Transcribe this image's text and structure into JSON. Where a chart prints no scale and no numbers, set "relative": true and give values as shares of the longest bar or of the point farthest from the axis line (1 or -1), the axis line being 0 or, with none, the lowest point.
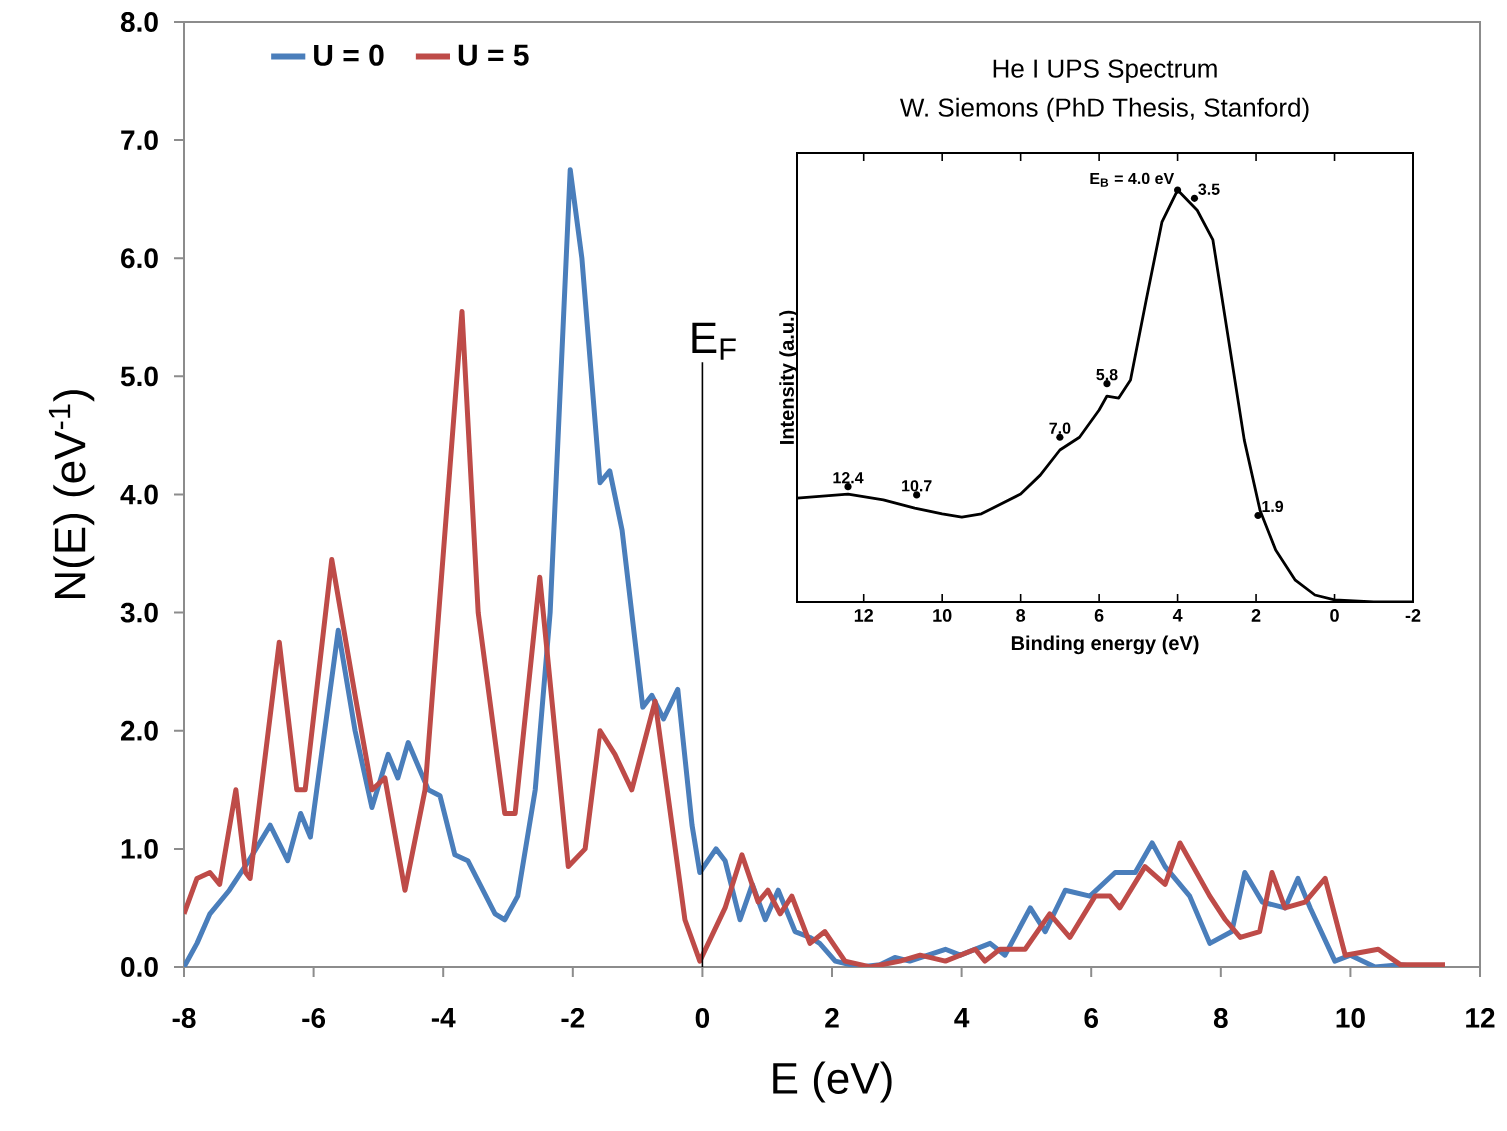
{
  "chart_data": [
    {
      "type": "line",
      "xlabel": "E (eV)",
      "ylabel": "N(E) (eV$^{-1}$)",
      "xlim": [
        -8,
        12
      ],
      "ylim": [
        0,
        8
      ],
      "xticks": [
        -8,
        -6,
        -4,
        -2,
        0,
        2,
        4,
        6,
        8,
        10,
        12
      ],
      "yticks": [
        {
          "value": 0,
          "label": "0.0"
        },
        {
          "value": 1,
          "label": "1.0"
        },
        {
          "value": 2,
          "label": "2.0"
        },
        {
          "value": 3,
          "label": "3.0"
        },
        {
          "value": 4,
          "label": "4.0"
        },
        {
          "value": 5,
          "label": "5.0"
        },
        {
          "value": 6,
          "label": "6.0"
        },
        {
          "value": 7,
          "label": "7.0"
        },
        {
          "value": 8,
          "label": "8.0"
        }
      ],
      "legend": "top left",
      "ref_lines": [
        {
          "axis": "x",
          "value": 0,
          "label": "E$_{F}$",
          "color": "#000000"
        }
      ],
      "series": [
        {
          "name": "U = 0",
          "color": "#4a7ebb",
          "x": [
            -8,
            -7.8,
            -7.6,
            -7.3,
            -7.0,
            -6.67,
            -6.4,
            -6.2,
            -6.05,
            -5.62,
            -5.36,
            -5.1,
            -4.85,
            -4.7,
            -4.54,
            -4.23,
            -4.05,
            -3.82,
            -3.62,
            -3.2,
            -3.05,
            -2.85,
            -2.58,
            -2.35,
            -2.04,
            -1.86,
            -1.58,
            -1.43,
            -1.24,
            -0.92,
            -0.78,
            -0.6,
            -0.38,
            -0.16,
            -0.04,
            0.21,
            0.35,
            0.58,
            0.77,
            0.97,
            1.17,
            1.43,
            1.66,
            1.81,
            2.05,
            2.43,
            2.74,
            2.97,
            3.2,
            3.75,
            3.98,
            4.44,
            4.67,
            5.06,
            5.29,
            5.6,
            5.98,
            6.37,
            6.68,
            6.94,
            7.14,
            7.52,
            7.83,
            8.17,
            8.37,
            8.64,
            8.99,
            9.19,
            9.38,
            9.76,
            10.0,
            10.38,
            10.77,
            11.07
          ],
          "values": [
            0,
            0.2,
            0.45,
            0.65,
            0.9,
            1.2,
            0.9,
            1.3,
            1.1,
            2.85,
            2.0,
            1.35,
            1.8,
            1.6,
            1.9,
            1.5,
            1.45,
            0.95,
            0.9,
            0.45,
            0.4,
            0.6,
            1.5,
            3.0,
            6.75,
            6.0,
            4.1,
            4.2,
            3.7,
            2.2,
            2.3,
            2.1,
            2.35,
            1.2,
            0.8,
            1.0,
            0.9,
            0.4,
            0.7,
            0.4,
            0.65,
            0.3,
            0.25,
            0.2,
            0.05,
            0,
            0.02,
            0.08,
            0.05,
            0.15,
            0.1,
            0.2,
            0.1,
            0.5,
            0.3,
            0.65,
            0.6,
            0.8,
            0.8,
            1.05,
            0.85,
            0.6,
            0.2,
            0.3,
            0.8,
            0.55,
            0.5,
            0.75,
            0.5,
            0.05,
            0.1,
            0,
            0.02,
            0
          ]
        },
        {
          "name": "U = 5",
          "color": "#be4b48",
          "x": [
            -8,
            -7.8,
            -7.6,
            -7.45,
            -7.2,
            -7.05,
            -6.98,
            -6.53,
            -6.26,
            -6.13,
            -5.72,
            -5.36,
            -5.1,
            -4.9,
            -4.59,
            -4.28,
            -3.71,
            -3.46,
            -3.05,
            -2.89,
            -2.51,
            -2.07,
            -1.81,
            -1.58,
            -1.35,
            -1.09,
            -0.73,
            -0.27,
            -0.04,
            0.35,
            0.61,
            0.86,
            1.01,
            1.2,
            1.38,
            1.66,
            1.89,
            2.2,
            2.59,
            3.05,
            3.36,
            3.75,
            4.21,
            4.36,
            4.59,
            4.98,
            5.36,
            5.67,
            6.06,
            6.29,
            6.44,
            6.83,
            7.14,
            7.37,
            7.83,
            8.07,
            8.3,
            8.6,
            8.79,
            8.99,
            9.3,
            9.61,
            9.92,
            10.43,
            10.77,
            11.46
          ],
          "values": [
            0.45,
            0.75,
            0.8,
            0.7,
            1.5,
            0.8,
            0.75,
            2.75,
            1.5,
            1.5,
            3.45,
            2.3,
            1.5,
            1.6,
            0.65,
            1.5,
            5.55,
            3.0,
            1.3,
            1.3,
            3.3,
            0.85,
            1.0,
            2.0,
            1.8,
            1.5,
            2.25,
            0.4,
            0.05,
            0.5,
            0.95,
            0.55,
            0.65,
            0.45,
            0.6,
            0.2,
            0.3,
            0.05,
            0,
            0.05,
            0.1,
            0.05,
            0.15,
            0.05,
            0.15,
            0.15,
            0.45,
            0.25,
            0.6,
            0.6,
            0.5,
            0.85,
            0.7,
            1.05,
            0.6,
            0.4,
            0.25,
            0.3,
            0.8,
            0.5,
            0.55,
            0.75,
            0.1,
            0.15,
            0.02,
            0.02
          ]
        }
      ]
    },
    {
      "type": "line",
      "title": "He I UPS Spectrum",
      "subtitle": "W. Siemons (PhD Thesis, Stanford)",
      "xlabel": "Binding energy (eV)",
      "ylabel": "Intensity (a.u.)",
      "relative": true,
      "xlim": [
        13.7,
        -2
      ],
      "xticks": [
        12,
        10,
        8,
        6,
        4,
        2,
        0,
        -2
      ],
      "series": [
        {
          "color": "#000000",
          "x": [
            13.7,
            12.4,
            11.5,
            10.7,
            10,
            9.5,
            9,
            8,
            7.5,
            7.0,
            6.5,
            6.0,
            5.8,
            5.5,
            5.2,
            4.8,
            4.4,
            4.0,
            3.5,
            3.1,
            2.7,
            2.3,
            1.9,
            1.5,
            1.0,
            0.5,
            0,
            -1,
            -2
          ],
          "values": [
            0.252,
            0.262,
            0.248,
            0.228,
            0.214,
            0.206,
            0.214,
            0.262,
            0.308,
            0.369,
            0.4,
            0.466,
            0.5,
            0.495,
            0.539,
            0.733,
            0.922,
            1.0,
            0.951,
            0.879,
            0.636,
            0.393,
            0.223,
            0.126,
            0.053,
            0.017,
            0.005,
            0,
            0
          ]
        }
      ],
      "annotations": [
        {
          "text": "E$_{B}$ = 4.0 eV",
          "x": 4.0,
          "y": 1.0
        },
        {
          "text": "3.5",
          "x": 3.57,
          "y": 0.98
        },
        {
          "text": "5.8",
          "x": 5.8,
          "y": 0.53
        },
        {
          "text": "7.0",
          "x": 7.0,
          "y": 0.4
        },
        {
          "text": "12.4",
          "x": 12.4,
          "y": 0.28
        },
        {
          "text": "10.7",
          "x": 10.65,
          "y": 0.26
        },
        {
          "text": "1.9",
          "x": 1.95,
          "y": 0.21
        }
      ]
    }
  ]
}
